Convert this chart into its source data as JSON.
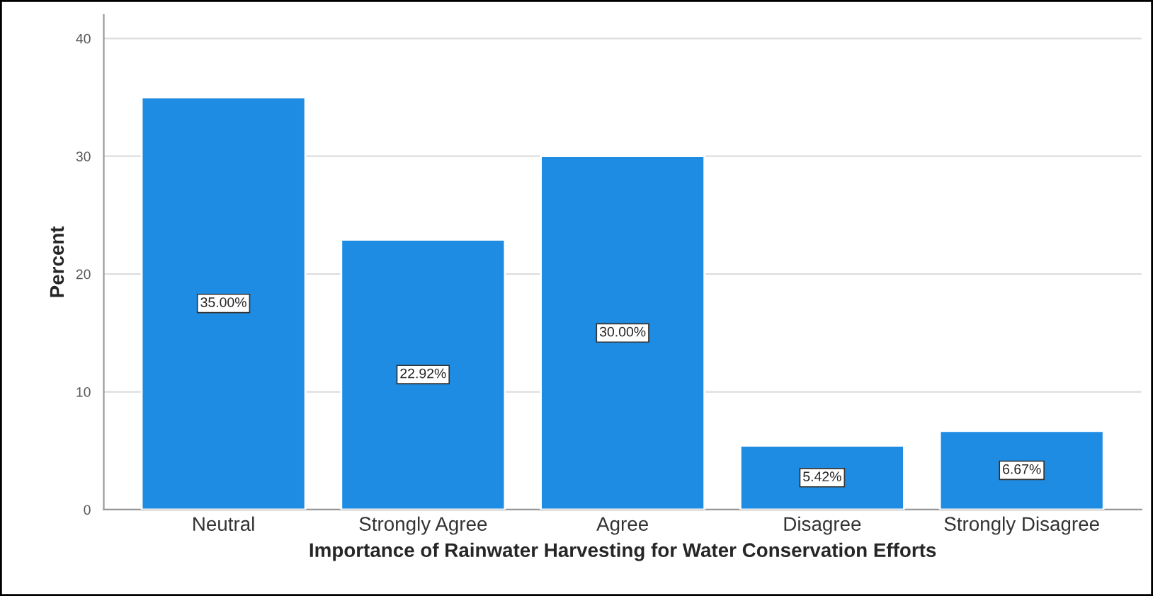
{
  "chart_data": {
    "type": "bar",
    "xlabel": "Importance of Rainwater Harvesting for Water Conservation Efforts",
    "ylabel": "Percent",
    "categories": [
      "Neutral",
      "Strongly Agree",
      "Agree",
      "Disagree",
      "Strongly Disagree"
    ],
    "values": [
      35.0,
      22.92,
      30.0,
      5.42,
      6.67
    ],
    "value_labels": [
      "35.00%",
      "22.92%",
      "30.00%",
      "5.42%",
      "6.67%"
    ],
    "color": "#1e8ce3",
    "ylim": [
      0,
      42
    ],
    "yticks": [
      0,
      10,
      20,
      30,
      40
    ],
    "grid": "y"
  }
}
